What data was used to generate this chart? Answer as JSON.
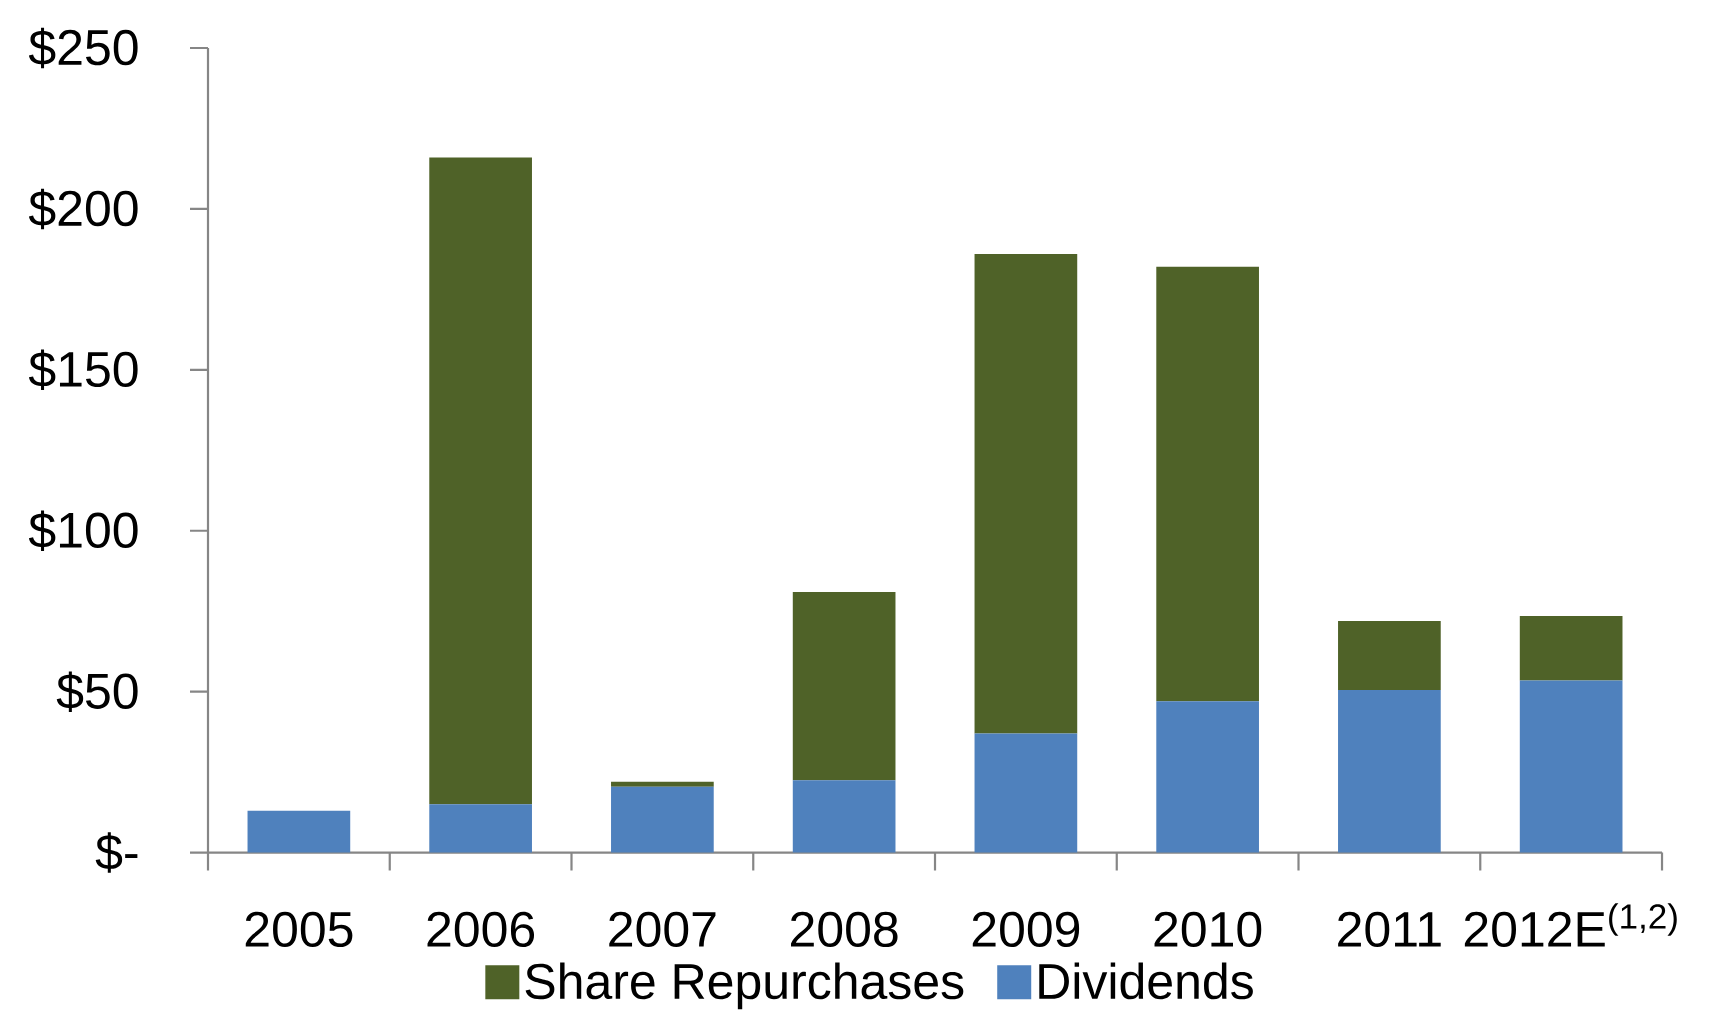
{
  "chart_data": {
    "type": "bar",
    "stacked": true,
    "categories": [
      "2005",
      "2006",
      "2007",
      "2008",
      "2009",
      "2010",
      "2011",
      "2012E$^{(1,2)}$"
    ],
    "series": [
      {
        "name": "Dividends",
        "color": "#4f81bd",
        "values": [
          13,
          15,
          20.5,
          22.5,
          37,
          47,
          50.5,
          53.5
        ]
      },
      {
        "name": "Share Repurchases",
        "color": "#4f6228",
        "values": [
          null,
          201,
          1.5,
          58.5,
          149,
          135,
          21.5,
          20
        ]
      }
    ],
    "ylim": [
      0,
      250
    ],
    "yticks": [
      {
        "value": 0,
        "label": "$-"
      },
      {
        "value": 50,
        "label": "$50"
      },
      {
        "value": 100,
        "label": "$100"
      },
      {
        "value": 150,
        "label": "$150"
      },
      {
        "value": 200,
        "label": "$200"
      },
      {
        "value": 250,
        "label": "$250"
      }
    ],
    "legend": "bottom"
  }
}
